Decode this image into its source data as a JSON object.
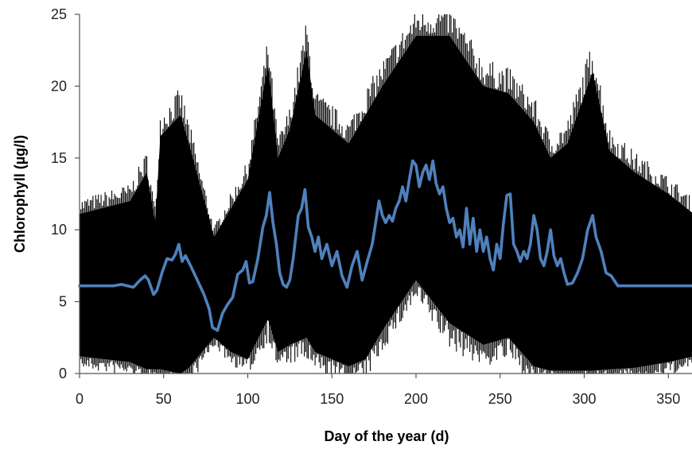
{
  "chart_data": {
    "type": "area",
    "xlabel": "Day of the year (d)",
    "ylabel": "Chlorophyll (µg/l)",
    "xlim": [
      0,
      365
    ],
    "ylim": [
      0,
      25
    ],
    "xticks": [
      "0",
      "50",
      "100",
      "150",
      "200",
      "250",
      "300",
      "350"
    ],
    "yticks": [
      "0",
      "5",
      "10",
      "15",
      "20",
      "25"
    ],
    "grid": false,
    "legend": "none",
    "series": [
      {
        "type": "line",
        "color": "#4f81bd",
        "x": [
          0,
          20,
          25,
          32,
          36,
          39,
          41,
          44,
          46,
          49,
          52,
          55,
          57,
          59,
          61,
          63,
          66,
          70,
          74,
          77,
          79,
          82,
          85,
          88,
          91,
          94,
          97,
          99,
          101,
          103,
          106,
          109,
          111,
          113,
          115,
          117,
          119,
          121,
          123,
          125,
          127,
          130,
          132,
          134,
          136,
          138,
          140,
          142,
          144,
          147,
          150,
          153,
          156,
          159,
          162,
          165,
          168,
          171,
          174,
          176,
          178,
          180,
          182,
          184,
          186,
          188,
          190,
          192,
          194,
          196,
          198,
          200,
          202,
          204,
          206,
          208,
          210,
          212,
          214,
          216,
          218,
          220,
          222,
          224,
          226,
          228,
          230,
          232,
          234,
          236,
          238,
          240,
          242,
          244,
          246,
          248,
          250,
          252,
          254,
          256,
          258,
          260,
          262,
          264,
          266,
          268,
          270,
          272,
          274,
          276,
          278,
          280,
          282,
          284,
          286,
          288,
          290,
          293,
          296,
          299,
          302,
          305,
          307,
          310,
          313,
          316,
          320,
          325,
          340,
          365
        ],
        "y": [
          6.1,
          6.1,
          6.2,
          6.0,
          6.5,
          6.8,
          6.5,
          5.5,
          5.8,
          7.0,
          8.0,
          7.9,
          8.3,
          9.0,
          7.8,
          8.2,
          7.5,
          6.5,
          5.5,
          4.5,
          3.2,
          3.0,
          4.2,
          4.8,
          5.3,
          6.9,
          7.2,
          7.8,
          6.3,
          6.4,
          8.0,
          10.2,
          11.0,
          12.6,
          10.5,
          9.0,
          7.0,
          6.2,
          6.0,
          6.5,
          8.0,
          11.0,
          11.5,
          12.8,
          10.2,
          9.5,
          8.5,
          9.5,
          8.0,
          9.0,
          7.5,
          8.5,
          6.8,
          6.0,
          7.5,
          8.5,
          6.5,
          7.8,
          9.0,
          10.5,
          12.0,
          11.0,
          10.5,
          11.0,
          10.6,
          11.5,
          12.0,
          13.0,
          12.0,
          13.5,
          14.8,
          14.5,
          13.0,
          14.0,
          14.5,
          13.5,
          14.8,
          13.2,
          12.5,
          13.0,
          11.5,
          10.5,
          10.8,
          9.5,
          10.0,
          8.8,
          11.5,
          9.0,
          10.8,
          8.5,
          10.0,
          8.5,
          9.5,
          8.0,
          7.2,
          9.0,
          8.0,
          10.5,
          12.4,
          12.5,
          9.0,
          8.5,
          7.8,
          8.5,
          8.0,
          9.0,
          11.0,
          10.0,
          8.0,
          7.5,
          8.5,
          10.0,
          8.2,
          7.5,
          8.0,
          7.0,
          6.2,
          6.3,
          7.0,
          8.0,
          10.0,
          11.0,
          9.5,
          8.5,
          7.0,
          6.8,
          6.1,
          6.1,
          6.1,
          6.1
        ]
      }
    ]
  }
}
